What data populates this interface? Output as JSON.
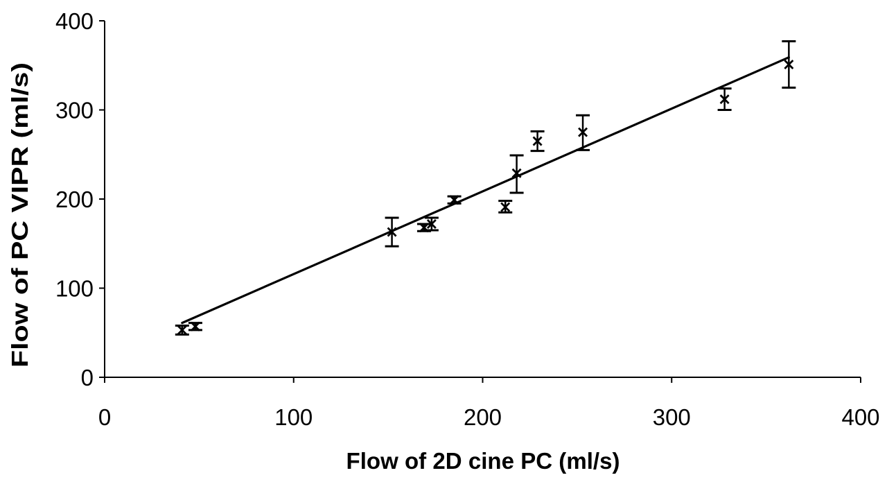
{
  "chart_data": {
    "type": "scatter",
    "title": "",
    "xlabel": "Flow of 2D cine PC (ml/s)",
    "ylabel": "Flow of PC VIPR (ml/s)",
    "xlim": [
      0,
      400
    ],
    "ylim": [
      0,
      400
    ],
    "x_ticks": [
      0,
      100,
      200,
      300,
      400
    ],
    "y_ticks": [
      0,
      100,
      200,
      300,
      400
    ],
    "x_tick_labels": [
      "0",
      "100",
      "200",
      "300",
      "400"
    ],
    "y_tick_labels": [
      "0",
      "100",
      "200",
      "300",
      "400"
    ],
    "grid": false,
    "legend": "none",
    "marker": "x",
    "points": [
      {
        "x": 41,
        "y": 53,
        "err_low": 48,
        "err_high": 58
      },
      {
        "x": 48,
        "y": 57,
        "err_low": 53,
        "err_high": 61
      },
      {
        "x": 152,
        "y": 163,
        "err_low": 147,
        "err_high": 179
      },
      {
        "x": 169,
        "y": 168,
        "err_low": 164,
        "err_high": 172
      },
      {
        "x": 173,
        "y": 172,
        "err_low": 165,
        "err_high": 179
      },
      {
        "x": 185,
        "y": 199,
        "err_low": 195,
        "err_high": 203
      },
      {
        "x": 212,
        "y": 191,
        "err_low": 185,
        "err_high": 198
      },
      {
        "x": 218,
        "y": 229,
        "err_low": 207,
        "err_high": 249
      },
      {
        "x": 229,
        "y": 265,
        "err_low": 254,
        "err_high": 276
      },
      {
        "x": 253,
        "y": 275,
        "err_low": 255,
        "err_high": 294
      },
      {
        "x": 328,
        "y": 312,
        "err_low": 300,
        "err_high": 324
      },
      {
        "x": 362,
        "y": 351,
        "err_low": 325,
        "err_high": 377
      }
    ],
    "fit_line": {
      "x": [
        41,
        362
      ],
      "y": [
        61,
        359
      ]
    },
    "colors": {
      "marks": "#000000",
      "background": "#ffffff"
    }
  }
}
